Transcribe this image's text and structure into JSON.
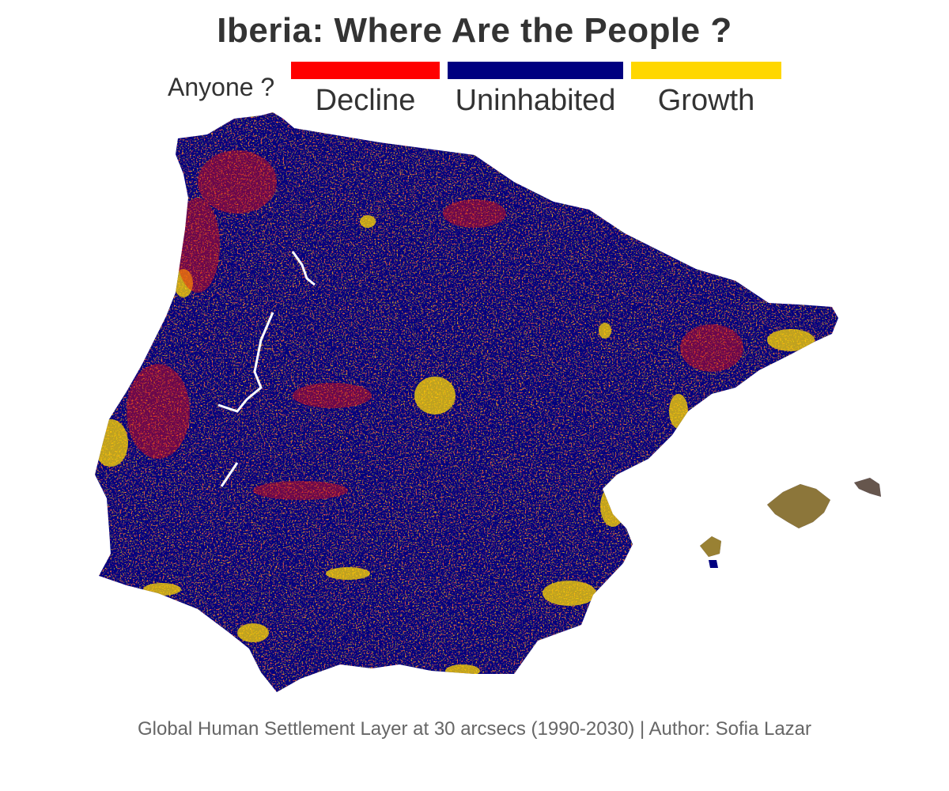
{
  "title": "Iberia: Where Are the People ?",
  "legend": {
    "title": "Anyone ?",
    "items": [
      {
        "label": "Decline",
        "color": "#ff0000"
      },
      {
        "label": "Uninhabited",
        "color": "#000080"
      },
      {
        "label": "Growth",
        "color": "#ffd700"
      }
    ]
  },
  "caption": "Global Human Settlement Layer at 30 arcsecs (1990-2030) | Author: Sofia Lazar",
  "map": {
    "region": "Iberian Peninsula and Balearic Islands",
    "background_color": "#ffffff",
    "river_color": "#ffffff"
  }
}
